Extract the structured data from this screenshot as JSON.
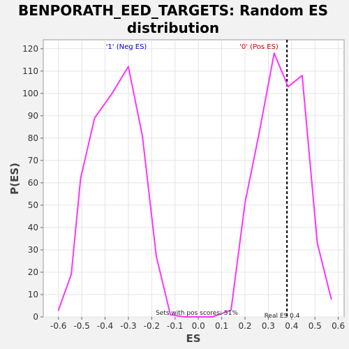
{
  "chart_data": {
    "type": "line",
    "title_lines": [
      "BENPORATH_EED_TARGETS: Random ES",
      "distribution"
    ],
    "xlabel": "ES",
    "ylabel": "P(ES)",
    "xlim": [
      -0.665,
      0.625
    ],
    "ylim": [
      0,
      124
    ],
    "xticks": [
      -0.6,
      -0.5,
      -0.4,
      -0.3,
      -0.2,
      -0.1,
      0.0,
      0.1,
      0.2,
      0.3,
      0.4,
      0.5,
      0.6
    ],
    "xtick_labels": [
      "-0.6",
      "-0.5",
      "-0.4",
      "-0.3",
      "-0.2",
      "-0.1",
      "0.0",
      "0.1",
      "0.2",
      "0.3",
      "0.4",
      "0.5",
      "0.6"
    ],
    "yticks": [
      0,
      10,
      20,
      30,
      40,
      50,
      60,
      70,
      80,
      90,
      100,
      110,
      120
    ],
    "ytick_labels": [
      "0",
      "10",
      "20",
      "30",
      "40",
      "50",
      "60",
      "70",
      "80",
      "90",
      "100",
      "110",
      "120"
    ],
    "grid": true,
    "series": [
      {
        "color": "#ff33ff",
        "x": [
          -0.6,
          -0.545,
          -0.505,
          -0.445,
          -0.37,
          -0.3,
          -0.24,
          -0.18,
          -0.12,
          -0.06,
          0.0,
          0.06,
          0.14,
          0.2,
          0.26,
          0.325,
          0.385,
          0.445,
          0.51,
          0.57
        ],
        "y": [
          3,
          19,
          62,
          89,
          100,
          112,
          81,
          27,
          1,
          0,
          0,
          0,
          3,
          51,
          82,
          118,
          103,
          108,
          33,
          8
        ]
      }
    ],
    "real_es": 0.38,
    "annotations": {
      "neg_label": "'1' (Neg ES)",
      "neg_color": "#0000cc",
      "pos_label": "'0' (Pos ES)",
      "pos_color": "#cc0000",
      "sets_pos_text": "Sets with pos scores: 51%",
      "real_es_text": "Real ES 0.4"
    }
  }
}
